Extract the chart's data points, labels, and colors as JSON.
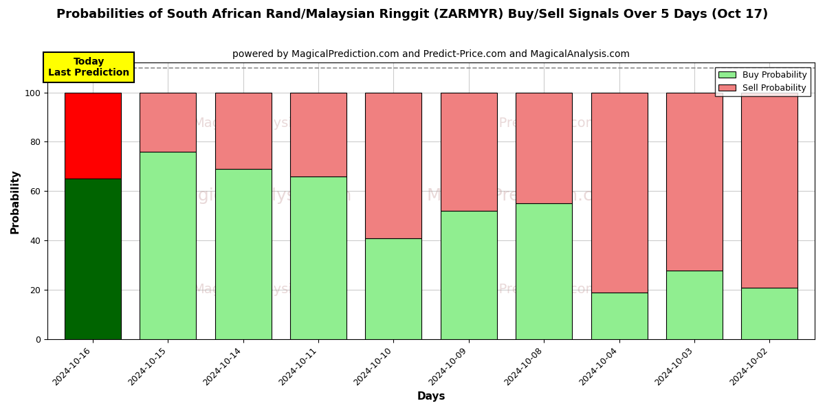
{
  "title": "Probabilities of South African Rand/Malaysian Ringgit (ZARMYR) Buy/Sell Signals Over 5 Days (Oct 17)",
  "subtitle": "powered by MagicalPrediction.com and Predict-Price.com and MagicalAnalysis.com",
  "xlabel": "Days",
  "ylabel": "Probability",
  "categories": [
    "2024-10-16",
    "2024-10-15",
    "2024-10-14",
    "2024-10-11",
    "2024-10-10",
    "2024-10-09",
    "2024-10-08",
    "2024-10-04",
    "2024-10-03",
    "2024-10-02"
  ],
  "buy_values": [
    65,
    76,
    69,
    66,
    41,
    52,
    55,
    19,
    28,
    21
  ],
  "sell_values": [
    35,
    24,
    31,
    34,
    59,
    48,
    45,
    81,
    72,
    79
  ],
  "today_index": 0,
  "today_buy_color": "#006400",
  "today_sell_color": "#ff0000",
  "normal_buy_color": "#90EE90",
  "normal_sell_color": "#F08080",
  "today_label_bg": "#ffff00",
  "today_label_text": "Today\nLast Prediction",
  "legend_buy_label": "Buy Probability",
  "legend_sell_label": "Sell Probability",
  "ylim": [
    0,
    112
  ],
  "dashed_line_y": 110,
  "grid_color": "#cccccc",
  "background_color": "#ffffff",
  "title_fontsize": 13,
  "subtitle_fontsize": 10,
  "axis_label_fontsize": 11,
  "tick_fontsize": 9,
  "legend_fontsize": 9,
  "bar_edge_color": "#000000",
  "bar_width": 0.75,
  "watermark_color": "#c8a0a0",
  "watermark_alpha": 0.4
}
